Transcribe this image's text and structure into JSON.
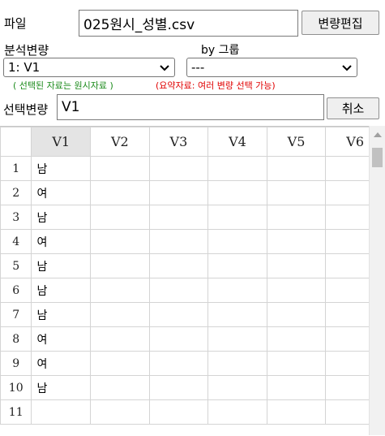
{
  "file": {
    "label": "파일",
    "value": "025원시_성별.csv",
    "edit_button": "변량편집"
  },
  "analysis": {
    "label": "분석변량",
    "selected": "1: V1",
    "hint": "( 선택된 자료는 원시자료 )"
  },
  "group": {
    "label": "by 그룹",
    "selected": "---",
    "hint": "(요약자료: 여러 변량 선택 가능)"
  },
  "selection": {
    "label": "선택변량",
    "value": "V1",
    "cancel_button": "취소"
  },
  "colors": {
    "hint_green": "#1a8a1a",
    "hint_red": "#e00000",
    "header_selected": "#e4e4e4"
  },
  "sheet": {
    "columns": [
      "V1",
      "V2",
      "V3",
      "V4",
      "V5",
      "V6"
    ],
    "rows": [
      {
        "n": "1",
        "v1": "남"
      },
      {
        "n": "2",
        "v1": "여"
      },
      {
        "n": "3",
        "v1": "남"
      },
      {
        "n": "4",
        "v1": "여"
      },
      {
        "n": "5",
        "v1": "남"
      },
      {
        "n": "6",
        "v1": "남"
      },
      {
        "n": "7",
        "v1": "남"
      },
      {
        "n": "8",
        "v1": "여"
      },
      {
        "n": "9",
        "v1": "여"
      },
      {
        "n": "10",
        "v1": "남"
      },
      {
        "n": "11",
        "v1": ""
      }
    ]
  }
}
